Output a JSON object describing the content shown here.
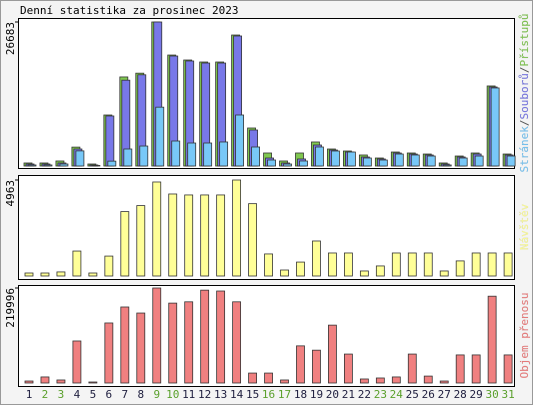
{
  "chart_data": [
    {
      "type": "bar",
      "title": "Denní statistika za prosinec 2023",
      "ylim": [
        0,
        26683
      ],
      "yticks": [
        26683
      ],
      "legend_separator": "/",
      "series": [
        {
          "name": "Přístupů",
          "color": "#80c850",
          "values": [
            560,
            560,
            930,
            3500,
            370,
            9450,
            16500,
            17200,
            26683,
            20560,
            19640,
            19270,
            19270,
            24270,
            7040,
            2410,
            930,
            2410,
            4450,
            3150,
            2780,
            2040,
            1480,
            2590,
            2410,
            2220,
            560,
            1850,
            2410,
            14830,
            2220
          ]
        },
        {
          "name": "Souborů",
          "color": "#7878e8",
          "values": [
            370,
            370,
            560,
            3150,
            190,
            9270,
            15900,
            16900,
            26683,
            20380,
            19460,
            19080,
            19080,
            24090,
            6670,
            1480,
            560,
            1300,
            3890,
            2960,
            2590,
            1670,
            1300,
            2410,
            2220,
            2040,
            370,
            1670,
            2220,
            14640,
            2040
          ]
        },
        {
          "name": "Stránek",
          "color": "#78c8f8",
          "values": [
            190,
            190,
            370,
            2800,
            100,
            900,
            3150,
            3700,
            10900,
            4630,
            4260,
            4260,
            4450,
            9450,
            3520,
            1110,
            370,
            930,
            3520,
            2780,
            2590,
            1480,
            1110,
            2220,
            2040,
            1850,
            190,
            1480,
            1850,
            14460,
            1850
          ]
        }
      ]
    },
    {
      "type": "bar",
      "ylim": [
        0,
        4963
      ],
      "yticks": [
        4963
      ],
      "series": [
        {
          "name": "Návštěv",
          "color": "#ffff98",
          "values": [
            155,
            155,
            210,
            1290,
            155,
            1030,
            3330,
            3640,
            4860,
            4240,
            4190,
            4190,
            4190,
            4963,
            3740,
            1140,
            310,
            720,
            1810,
            1190,
            1190,
            260,
            520,
            1190,
            1190,
            1190,
            260,
            780,
            1190,
            1190,
            1190
          ]
        }
      ]
    },
    {
      "type": "bar",
      "ylim": [
        0,
        219996
      ],
      "yticks": [
        219996
      ],
      "categories": [
        "1",
        "2",
        "3",
        "4",
        "5",
        "6",
        "7",
        "8",
        "9",
        "10",
        "11",
        "12",
        "13",
        "14",
        "15",
        "16",
        "17",
        "18",
        "19",
        "20",
        "21",
        "22",
        "23",
        "24",
        "25",
        "26",
        "27",
        "28",
        "29",
        "30",
        "31"
      ],
      "label_colors": [
        "#202040",
        "#5aa02c",
        "#5aa02c",
        "#202040",
        "#202040",
        "#202040",
        "#202040",
        "#202040",
        "#5aa02c",
        "#5aa02c",
        "#202040",
        "#202040",
        "#202040",
        "#202040",
        "#202040",
        "#5aa02c",
        "#5aa02c",
        "#202040",
        "#202040",
        "#202040",
        "#202040",
        "#202040",
        "#5aa02c",
        "#5aa02c",
        "#202040",
        "#202040",
        "#202040",
        "#202040",
        "#202040",
        "#5aa02c",
        "#5aa02c"
      ],
      "series": [
        {
          "name": "Objem přenosu",
          "color": "#f08080",
          "values": [
            4600,
            14000,
            7000,
            97300,
            2300,
            139000,
            176000,
            162000,
            219996,
            185000,
            188000,
            215000,
            213000,
            188000,
            23000,
            23000,
            7000,
            86000,
            76000,
            134000,
            67000,
            9300,
            11600,
            14000,
            67000,
            16000,
            4600,
            65000,
            65000,
            201000,
            65000
          ]
        }
      ]
    }
  ]
}
